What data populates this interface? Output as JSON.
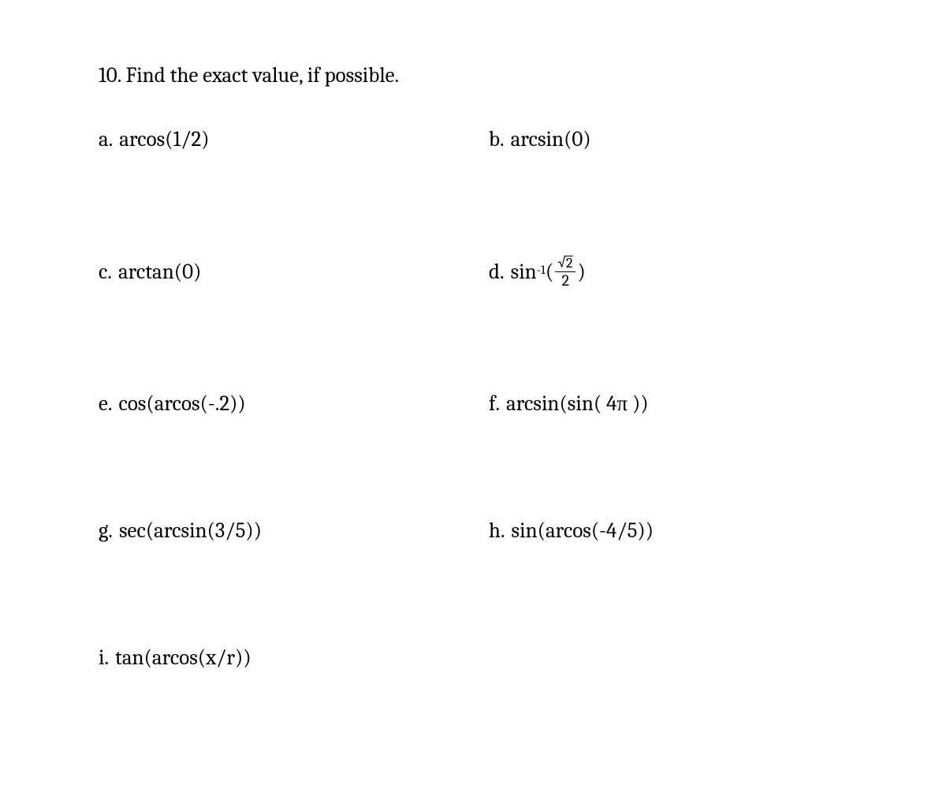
{
  "page": {
    "background_color": "#ffffff",
    "text_color": "#000000",
    "font_family": "Cambria, Georgia, serif",
    "title_fontsize": 27,
    "problem_fontsize": 27
  },
  "question": {
    "number": "10.",
    "prompt": "Find the exact value, if possible."
  },
  "problems": {
    "a": {
      "label": "a.",
      "expr": "arcos(1/2)"
    },
    "b": {
      "label": "b.",
      "expr": "arcsin(0)"
    },
    "c": {
      "label": "c.",
      "expr": "arctan(0)"
    },
    "d": {
      "label": "d.",
      "prefix": "sin",
      "sup": "-1",
      "open": "(",
      "frac_num_sqrt": "2",
      "frac_den": "2",
      "close": ")"
    },
    "e": {
      "label": "e.",
      "expr": "cos(arcos(-.2))"
    },
    "f": {
      "label": "f.",
      "expr": "arcsin(sin( 4π ))"
    },
    "g": {
      "label": "g.",
      "expr": "sec(arcsin(3/5))"
    },
    "h": {
      "label": "h.",
      "expr": "sin(arcos(-4/5))"
    },
    "i": {
      "label": "i.",
      "expr": "tan(arcos(x/r))"
    }
  }
}
